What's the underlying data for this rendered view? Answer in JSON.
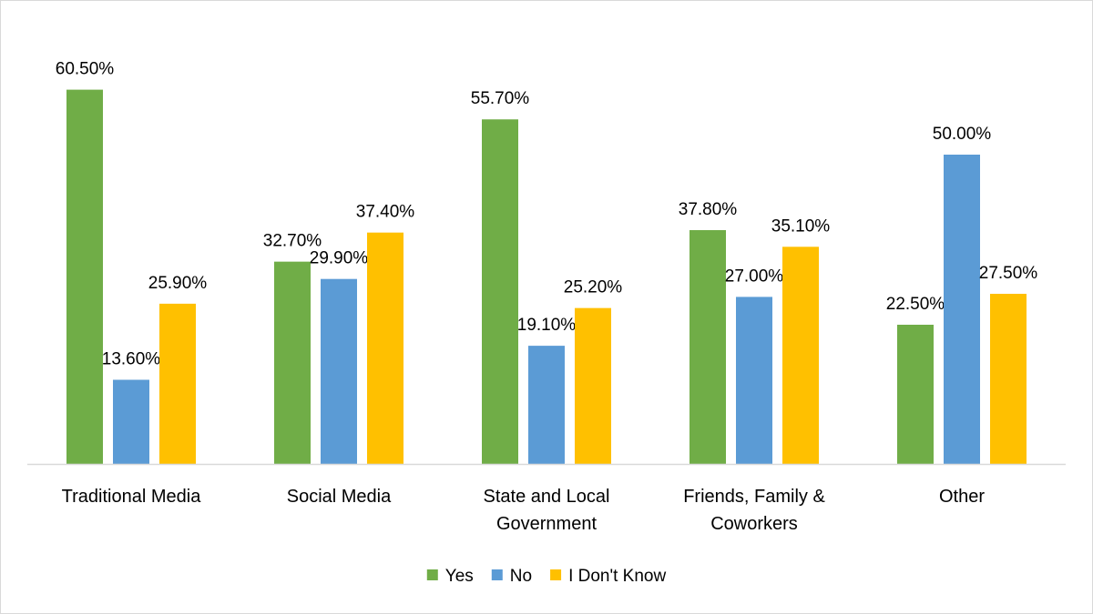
{
  "chart_data": {
    "type": "bar",
    "categories": [
      [
        "Traditional Media"
      ],
      [
        "Social Media"
      ],
      [
        "State and Local",
        "Government"
      ],
      [
        "Friends, Family &",
        "Coworkers"
      ],
      [
        "Other"
      ]
    ],
    "series": [
      {
        "name": "Yes",
        "color": "#70ad47",
        "values": [
          60.5,
          32.7,
          55.7,
          37.8,
          22.5
        ],
        "labels": [
          "60.50%",
          "32.70%",
          "55.70%",
          "37.80%",
          "22.50%"
        ]
      },
      {
        "name": "No",
        "color": "#5b9bd5",
        "values": [
          13.6,
          29.9,
          19.1,
          27.0,
          50.0
        ],
        "labels": [
          "13.60%",
          "29.90%",
          "19.10%",
          "27.00%",
          "50.00%"
        ]
      },
      {
        "name": "I Don't Know",
        "color": "#ffc000",
        "values": [
          25.9,
          37.4,
          25.2,
          35.1,
          27.5
        ],
        "labels": [
          "25.90%",
          "37.40%",
          "25.20%",
          "35.10%",
          "27.50%"
        ]
      }
    ],
    "ylim": [
      0,
      65
    ],
    "legend_position": "bottom",
    "grid": false,
    "title": "",
    "xlabel": "",
    "ylabel": ""
  }
}
